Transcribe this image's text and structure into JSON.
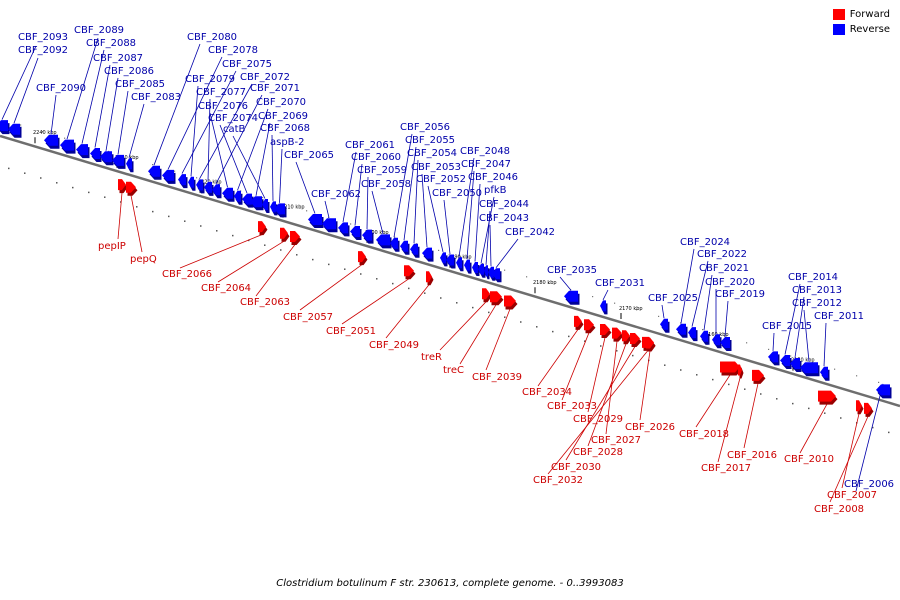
{
  "legend": {
    "forward_label": "Forward",
    "reverse_label": "Reverse",
    "forward_color": "#ff0000",
    "reverse_color": "#0000ff"
  },
  "caption": "Clostridium botulinum F str. 230613, complete genome. - 0..3993083",
  "label_colors": {
    "forward": "#cc0000",
    "reverse": "#0000aa"
  },
  "scale_ticks": [
    "2240 kbp",
    "2230 kbp",
    "2220 kbp",
    "2210 kbp",
    "2200 kbp",
    "2190 kbp",
    "2180 kbp",
    "2170 kbp",
    "2160 kbp",
    "2150 kbp"
  ],
  "reverse_genes": [
    "CBF_2093",
    "CBF_2092",
    "CBF_2090",
    "CBF_2089",
    "CBF_2088",
    "CBF_2087",
    "CBF_2086",
    "CBF_2085",
    "CBF_2083",
    "CBF_2080",
    "CBF_2078",
    "CBF_2075",
    "CBF_2079",
    "CBF_2072",
    "CBF_2077",
    "CBF_2071",
    "CBF_2076",
    "CBF_2070",
    "CBF_2074",
    "CBF_2069",
    "catB",
    "CBF_2068",
    "aspB-2",
    "CBF_2065",
    "CBF_2062",
    "CBF_2061",
    "CBF_2060",
    "CBF_2059",
    "CBF_2058",
    "CBF_2056",
    "CBF_2055",
    "CBF_2054",
    "CBF_2053",
    "CBF_2052",
    "CBF_2050",
    "CBF_2048",
    "CBF_2047",
    "CBF_2046",
    "pfkB",
    "CBF_2044",
    "CBF_2043",
    "CBF_2042",
    "CBF_2035",
    "CBF_2031",
    "CBF_2025",
    "CBF_2024",
    "CBF_2022",
    "CBF_2021",
    "CBF_2020",
    "CBF_2019",
    "CBF_2015",
    "CBF_2014",
    "CBF_2013",
    "CBF_2012",
    "CBF_2011",
    "CBF_2006"
  ],
  "forward_genes": [
    "pepIP",
    "pepQ",
    "CBF_2066",
    "CBF_2064",
    "CBF_2063",
    "CBF_2057",
    "CBF_2051",
    "CBF_2049",
    "treR",
    "treC",
    "CBF_2039",
    "CBF_2034",
    "CBF_2033",
    "CBF_2029",
    "CBF_2027",
    "CBF_2028",
    "CBF_2030",
    "CBF_2032",
    "CBF_2026",
    "CBF_2018",
    "CBF_2017",
    "CBF_2016",
    "CBF_2010",
    "CBF_2007",
    "CBF_2008"
  ]
}
